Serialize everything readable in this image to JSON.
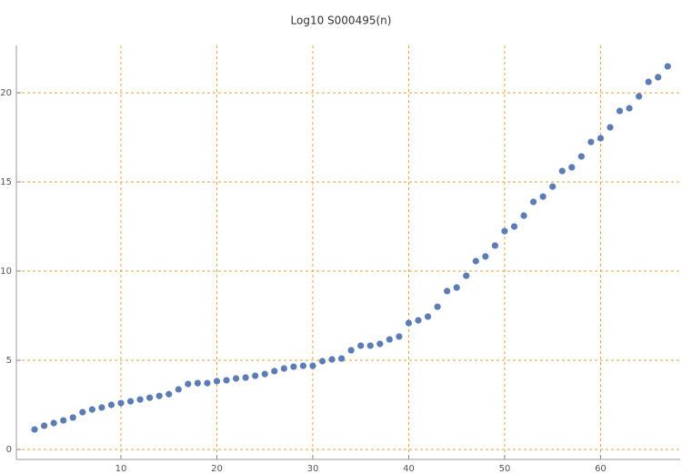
{
  "chart_data": {
    "type": "scatter",
    "title": "Log10 S000495(n)",
    "x": [
      1,
      2,
      3,
      4,
      5,
      6,
      7,
      8,
      9,
      10,
      11,
      12,
      13,
      14,
      15,
      16,
      17,
      18,
      19,
      20,
      21,
      22,
      23,
      24,
      25,
      26,
      27,
      28,
      29,
      30,
      31,
      32,
      33,
      34,
      35,
      36,
      37,
      38,
      39,
      40,
      41,
      42,
      43,
      44,
      45,
      46,
      47,
      48,
      49,
      50,
      51,
      52,
      53,
      54,
      55,
      56,
      57,
      58,
      59,
      60,
      61,
      62,
      63,
      64,
      65,
      66,
      67
    ],
    "series": [
      {
        "color": "#5b7cb5",
        "values": [
          1.12,
          1.33,
          1.48,
          1.63,
          1.79,
          2.09,
          2.24,
          2.35,
          2.5,
          2.6,
          2.7,
          2.8,
          2.9,
          3.0,
          3.1,
          3.37,
          3.67,
          3.72,
          3.72,
          3.83,
          3.88,
          3.98,
          4.03,
          4.13,
          4.23,
          4.39,
          4.54,
          4.64,
          4.69,
          4.69,
          4.95,
          5.05,
          5.1,
          5.56,
          5.82,
          5.82,
          5.92,
          6.17,
          6.33,
          7.09,
          7.24,
          7.45,
          8.0,
          8.88,
          9.08,
          9.74,
          10.56,
          10.82,
          11.43,
          12.24,
          12.5,
          13.11,
          13.88,
          14.18,
          14.74,
          15.61,
          15.82,
          16.43,
          17.24,
          17.45,
          18.06,
          18.98,
          19.13,
          19.8,
          20.61,
          20.87,
          21.48
        ]
      }
    ],
    "xlim": [
      -0.9,
      68.3
    ],
    "ylim": [
      -0.56,
      22.65
    ],
    "xticks": [
      10,
      20,
      30,
      40,
      50,
      60
    ],
    "yticks": [
      0,
      5,
      10,
      15,
      20
    ],
    "grid": true,
    "grid_color": "#e8a33a"
  }
}
